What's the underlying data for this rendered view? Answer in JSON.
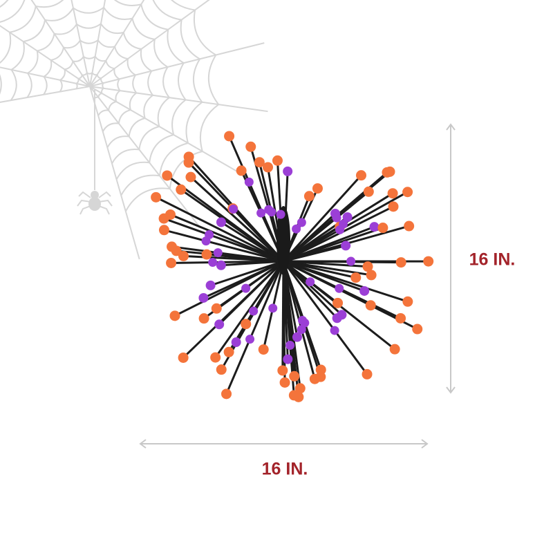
{
  "dimensions": {
    "height_label": "16 IN.",
    "width_label": "16 IN."
  }
}
